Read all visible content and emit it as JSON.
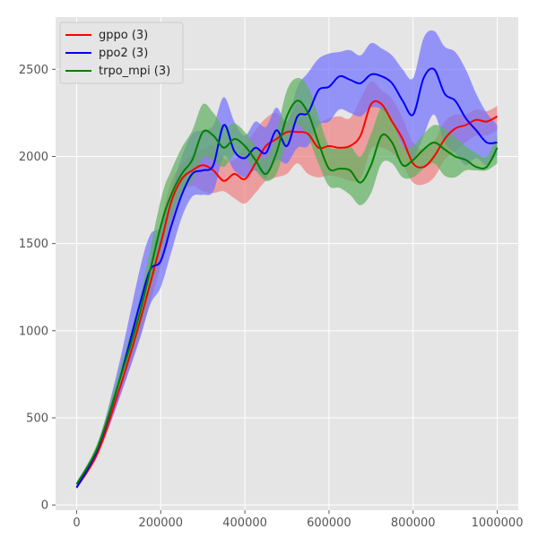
{
  "chart_data": {
    "type": "line",
    "title": "",
    "xlabel": "",
    "ylabel": "",
    "xlim": [
      -50000,
      1050000
    ],
    "ylim": [
      -30,
      2800
    ],
    "grid": true,
    "legend_position": "top-left",
    "x_ticks": [
      0,
      200000,
      400000,
      600000,
      800000,
      1000000
    ],
    "x_tick_labels": [
      "0",
      "200000",
      "400000",
      "600000",
      "800000",
      "1000000"
    ],
    "y_ticks": [
      0,
      500,
      1000,
      1500,
      2000,
      2500
    ],
    "y_tick_labels": [
      "0",
      "500",
      "1000",
      "1500",
      "2000",
      "2500"
    ],
    "series": [
      {
        "name": "gppo (3)",
        "color": "#ff0000",
        "band_color": "#f08080",
        "x": [
          0,
          50000,
          100000,
          150000,
          200000,
          225000,
          250000,
          275000,
          300000,
          325000,
          350000,
          375000,
          400000,
          425000,
          450000,
          475000,
          500000,
          525000,
          550000,
          575000,
          600000,
          625000,
          650000,
          675000,
          700000,
          725000,
          750000,
          775000,
          800000,
          825000,
          850000,
          875000,
          900000,
          925000,
          950000,
          975000,
          1000000
        ],
        "y": [
          100,
          300,
          650,
          1050,
          1500,
          1740,
          1870,
          1920,
          1950,
          1920,
          1860,
          1900,
          1870,
          1960,
          2060,
          2100,
          2140,
          2140,
          2130,
          2050,
          2060,
          2050,
          2060,
          2120,
          2300,
          2300,
          2200,
          2100,
          1960,
          1940,
          2000,
          2100,
          2160,
          2180,
          2210,
          2200,
          2230
        ],
        "lower": [
          90,
          280,
          600,
          960,
          1370,
          1620,
          1790,
          1830,
          1800,
          1790,
          1800,
          1760,
          1730,
          1790,
          1860,
          1880,
          1900,
          1960,
          1900,
          1880,
          1890,
          1880,
          1860,
          1870,
          2040,
          2050,
          2020,
          1950,
          1850,
          1840,
          1880,
          1980,
          2030,
          2080,
          2120,
          2120,
          2150
        ],
        "upper": [
          110,
          320,
          720,
          1130,
          1620,
          1860,
          1950,
          2010,
          2040,
          2060,
          1990,
          1980,
          2060,
          2150,
          2220,
          2250,
          2200,
          2300,
          2260,
          2200,
          2220,
          2230,
          2220,
          2330,
          2430,
          2380,
          2330,
          2220,
          2080,
          2040,
          2090,
          2200,
          2240,
          2240,
          2270,
          2260,
          2290
        ]
      },
      {
        "name": "ppo2 (3)",
        "color": "#0000ff",
        "band_color": "#7070ff",
        "x": [
          0,
          50000,
          100000,
          150000,
          175000,
          200000,
          225000,
          250000,
          275000,
          300000,
          325000,
          350000,
          375000,
          400000,
          425000,
          450000,
          475000,
          500000,
          525000,
          550000,
          575000,
          600000,
          625000,
          650000,
          675000,
          700000,
          725000,
          750000,
          775000,
          800000,
          825000,
          850000,
          875000,
          900000,
          925000,
          950000,
          975000,
          1000000
        ],
        "y": [
          100,
          320,
          700,
          1150,
          1350,
          1400,
          1600,
          1780,
          1900,
          1920,
          1950,
          2180,
          2030,
          1990,
          2050,
          2020,
          2150,
          2060,
          2230,
          2250,
          2380,
          2400,
          2460,
          2440,
          2420,
          2470,
          2460,
          2420,
          2320,
          2240,
          2450,
          2500,
          2360,
          2320,
          2220,
          2150,
          2080,
          2080
        ],
        "lower": [
          90,
          290,
          600,
          950,
          1150,
          1250,
          1450,
          1650,
          1770,
          1780,
          1800,
          2000,
          1920,
          1880,
          1920,
          1880,
          1980,
          1960,
          2050,
          2060,
          2180,
          2200,
          2270,
          2250,
          2230,
          2280,
          2270,
          2200,
          2060,
          1990,
          2120,
          2240,
          2080,
          2020,
          1950,
          1990,
          1950,
          2010
        ],
        "upper": [
          110,
          350,
          800,
          1350,
          1550,
          1600,
          1800,
          2000,
          2130,
          2150,
          2180,
          2340,
          2200,
          2120,
          2200,
          2170,
          2280,
          2200,
          2400,
          2480,
          2560,
          2590,
          2600,
          2610,
          2580,
          2650,
          2620,
          2580,
          2500,
          2450,
          2680,
          2720,
          2630,
          2600,
          2500,
          2360,
          2250,
          2180
        ]
      },
      {
        "name": "trpo_mpi (3)",
        "color": "#008000",
        "band_color": "#60b060",
        "x": [
          0,
          50000,
          100000,
          150000,
          200000,
          225000,
          250000,
          275000,
          300000,
          325000,
          350000,
          375000,
          400000,
          425000,
          450000,
          475000,
          500000,
          525000,
          550000,
          575000,
          600000,
          625000,
          650000,
          675000,
          700000,
          725000,
          750000,
          775000,
          800000,
          825000,
          850000,
          875000,
          900000,
          925000,
          950000,
          975000,
          1000000
        ],
        "y": [
          120,
          330,
          700,
          1100,
          1600,
          1780,
          1900,
          1980,
          2140,
          2120,
          2050,
          2100,
          2060,
          1980,
          1900,
          2020,
          2230,
          2320,
          2250,
          2080,
          1930,
          1930,
          1920,
          1850,
          1950,
          2120,
          2080,
          1950,
          1980,
          2040,
          2080,
          2040,
          2000,
          1980,
          1940,
          1940,
          2050
        ],
        "lower": [
          110,
          300,
          640,
          1010,
          1450,
          1650,
          1800,
          1860,
          1990,
          1980,
          1940,
          2010,
          1990,
          1920,
          1860,
          1900,
          2080,
          2180,
          2110,
          1960,
          1830,
          1820,
          1780,
          1720,
          1790,
          1960,
          1960,
          1880,
          1880,
          1930,
          1960,
          1890,
          1880,
          1920,
          1920,
          1920,
          1960
        ],
        "upper": [
          130,
          360,
          760,
          1190,
          1750,
          1920,
          2050,
          2150,
          2300,
          2250,
          2170,
          2190,
          2140,
          2060,
          1990,
          2140,
          2380,
          2450,
          2400,
          2230,
          2060,
          2050,
          2060,
          2000,
          2130,
          2280,
          2220,
          2060,
          2060,
          2130,
          2180,
          2160,
          2110,
          2060,
          2020,
          2000,
          2120
        ]
      }
    ]
  }
}
